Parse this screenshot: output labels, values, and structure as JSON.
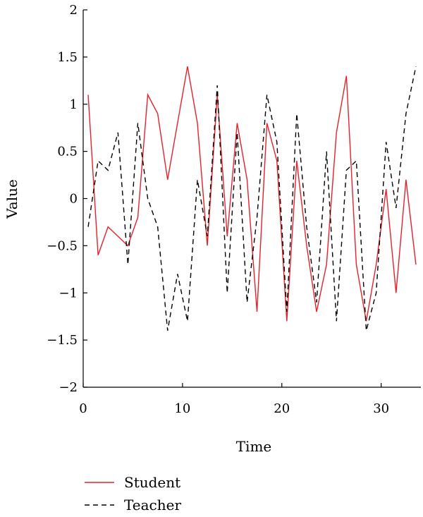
{
  "chart_data": {
    "type": "line",
    "xlabel": "Time",
    "ylabel": "Value",
    "xlim": [
      0,
      34
    ],
    "ylim": [
      -2,
      2
    ],
    "x_ticks": [
      0,
      10,
      20,
      30
    ],
    "y_ticks": [
      2,
      1.5,
      1,
      0.5,
      0,
      -0.5,
      -1,
      -1.5,
      -2
    ],
    "y_tick_labels": [
      "2",
      "1.5",
      "1",
      "0.5",
      "0",
      "−0.5",
      "−1",
      "−1.5",
      "−2"
    ],
    "grid": false,
    "legend_position": "bottom-left",
    "series": [
      {
        "name": "Student",
        "color": "#e8202a",
        "dash": "solid",
        "x": [
          0.5,
          1.5,
          2.5,
          3.5,
          4.5,
          5.5,
          6.5,
          7.5,
          8.5,
          9.5,
          10.5,
          11.5,
          12.5,
          13.5,
          14.5,
          15.5,
          16.5,
          17.5,
          18.5,
          19.5,
          20.5,
          21.5,
          22.5,
          23.5,
          24.5,
          25.5,
          26.5,
          27.5,
          28.5,
          29.5,
          30.5,
          31.5,
          32.5,
          33.5
        ],
        "values": [
          1.1,
          -0.6,
          -0.3,
          -0.4,
          -0.5,
          -0.2,
          1.1,
          0.9,
          0.2,
          0.8,
          1.4,
          0.8,
          -0.5,
          1.1,
          -0.4,
          0.8,
          0.2,
          -1.2,
          0.8,
          0.4,
          -1.3,
          0.4,
          -0.5,
          -1.2,
          -0.7,
          0.7,
          1.3,
          -0.7,
          -1.3,
          -0.7,
          0.1,
          -1.0,
          0.2,
          -0.7
        ]
      },
      {
        "name": "Teacher",
        "color": "#000000",
        "dash": "dashed",
        "x": [
          0.5,
          1.5,
          2.5,
          3.5,
          4.5,
          5.5,
          6.5,
          7.5,
          8.5,
          9.5,
          10.5,
          11.5,
          12.5,
          13.5,
          14.5,
          15.5,
          16.5,
          17.5,
          18.5,
          19.5,
          20.5,
          21.5,
          22.5,
          23.5,
          24.5,
          25.5,
          26.5,
          27.5,
          28.5,
          29.5,
          30.5,
          31.5,
          32.5,
          33.5
        ],
        "values": [
          -0.3,
          0.4,
          0.3,
          0.7,
          -0.7,
          0.8,
          0.0,
          -0.3,
          -1.4,
          -0.8,
          -1.3,
          0.2,
          -0.4,
          1.2,
          -1.0,
          0.7,
          -1.1,
          -0.2,
          1.1,
          0.6,
          -1.2,
          0.9,
          -0.3,
          -1.1,
          0.5,
          -1.3,
          0.3,
          0.4,
          -1.4,
          -1.0,
          0.6,
          -0.1,
          0.9,
          1.4
        ]
      }
    ]
  }
}
